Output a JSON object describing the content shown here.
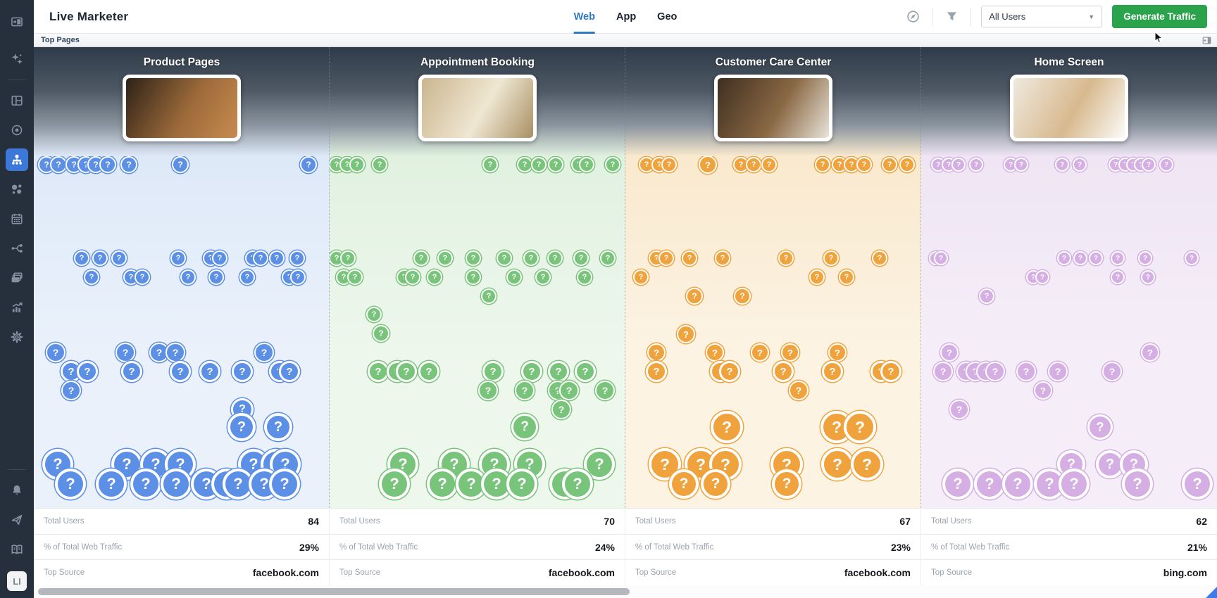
{
  "app": {
    "title": "Live Marketer"
  },
  "header": {
    "tabs": [
      {
        "label": "Web",
        "active": true
      },
      {
        "label": "App",
        "active": false
      },
      {
        "label": "Geo",
        "active": false
      }
    ],
    "icons": [
      "compass-icon",
      "filter-icon"
    ],
    "user_filter": {
      "value": "All Users",
      "caret": "▼"
    },
    "generate_button_label": "Generate Traffic",
    "accent_green": "#2BA24C",
    "tab_active_color": "#2F7AC0"
  },
  "subheader": {
    "title": "Top Pages",
    "panel_icon": "panel-collapse-icon"
  },
  "sidebar": {
    "items": [
      {
        "icon": "panel-toggle-icon"
      },
      {
        "icon": "sparkles-icon"
      },
      {
        "type": "divider"
      },
      {
        "icon": "dashboard-icon"
      },
      {
        "icon": "target-icon"
      },
      {
        "icon": "sitemap-icon",
        "active": true
      },
      {
        "icon": "bubbles-icon"
      },
      {
        "icon": "calendar-icon"
      },
      {
        "icon": "branch-icon"
      },
      {
        "icon": "stack-icon"
      },
      {
        "icon": "chart-icon"
      },
      {
        "icon": "gear-icon"
      },
      {
        "type": "spacer"
      },
      {
        "type": "divider"
      },
      {
        "icon": "bell-icon"
      },
      {
        "icon": "send-icon"
      },
      {
        "icon": "book-icon"
      }
    ],
    "badge": "LI",
    "active_color": "#3B78D8"
  },
  "stats_labels": {
    "users": "Total Users",
    "traffic": "% of Total Web Traffic",
    "source": "Top Source"
  },
  "columns": [
    {
      "title": "Product Pages",
      "accent": "#5C8FE6",
      "bg1": "#DEE9F8",
      "bg2": "#EAF1FB",
      "photo": [
        "#2E2217",
        "#9C6A3A",
        "#C88B4F"
      ],
      "stats": {
        "total_users": "84",
        "traffic_pct": "29%",
        "top_source": "facebook.com"
      },
      "bubbles": [
        [
          18,
          12,
          12
        ],
        [
          35,
          12,
          12
        ],
        [
          57,
          12,
          12
        ],
        [
          74,
          12,
          12
        ],
        [
          88,
          12,
          12
        ],
        [
          105,
          12,
          12
        ],
        [
          135,
          12,
          12
        ],
        [
          208,
          12,
          12
        ],
        [
          390,
          12,
          12
        ],
        [
          68,
          145,
          11
        ],
        [
          94,
          145,
          11
        ],
        [
          121,
          145,
          11
        ],
        [
          205,
          145,
          11
        ],
        [
          251,
          145,
          11
        ],
        [
          264,
          145,
          11
        ],
        [
          311,
          145,
          11
        ],
        [
          322,
          145,
          11
        ],
        [
          345,
          145,
          11
        ],
        [
          374,
          145,
          11
        ],
        [
          82,
          172,
          11
        ],
        [
          138,
          172,
          11
        ],
        [
          154,
          172,
          11
        ],
        [
          219,
          172,
          11
        ],
        [
          259,
          172,
          11
        ],
        [
          303,
          172,
          11
        ],
        [
          363,
          172,
          11
        ],
        [
          375,
          172,
          11
        ],
        [
          31,
          279,
          14
        ],
        [
          130,
          279,
          14
        ],
        [
          178,
          279,
          14
        ],
        [
          201,
          279,
          14
        ],
        [
          327,
          279,
          14
        ],
        [
          53,
          306,
          15
        ],
        [
          76,
          306,
          15
        ],
        [
          139,
          306,
          15
        ],
        [
          208,
          306,
          15
        ],
        [
          250,
          306,
          15
        ],
        [
          296,
          306,
          15
        ],
        [
          349,
          306,
          15
        ],
        [
          363,
          306,
          15
        ],
        [
          53,
          333,
          14
        ],
        [
          296,
          360,
          16
        ],
        [
          295,
          385,
          20
        ],
        [
          347,
          385,
          20
        ],
        [
          34,
          438,
          22
        ],
        [
          132,
          438,
          22
        ],
        [
          173,
          438,
          22
        ],
        [
          208,
          438,
          22
        ],
        [
          312,
          438,
          22
        ],
        [
          344,
          438,
          22
        ],
        [
          357,
          438,
          22
        ],
        [
          52,
          466,
          22
        ],
        [
          110,
          466,
          22
        ],
        [
          159,
          466,
          22
        ],
        [
          202,
          466,
          22
        ],
        [
          245,
          466,
          22
        ],
        [
          274,
          466,
          22
        ],
        [
          290,
          466,
          22
        ],
        [
          327,
          466,
          22
        ],
        [
          356,
          466,
          22
        ]
      ]
    },
    {
      "title": "Appointment Booking",
      "accent": "#79C47B",
      "bg1": "#E1F1E0",
      "bg2": "#EDF7EC",
      "photo": [
        "#CBB58E",
        "#EFE7D2",
        "#A98F63"
      ],
      "stats": {
        "total_users": "70",
        "traffic_pct": "24%",
        "top_source": "facebook.com"
      },
      "bubbles": [
        [
          10,
          12,
          11
        ],
        [
          25,
          12,
          11
        ],
        [
          39,
          12,
          11
        ],
        [
          71,
          12,
          11
        ],
        [
          228,
          12,
          11
        ],
        [
          277,
          12,
          11
        ],
        [
          297,
          12,
          11
        ],
        [
          321,
          12,
          11
        ],
        [
          354,
          12,
          11
        ],
        [
          365,
          12,
          11
        ],
        [
          402,
          12,
          11
        ],
        [
          10,
          145,
          11
        ],
        [
          26,
          145,
          11
        ],
        [
          130,
          145,
          11
        ],
        [
          164,
          145,
          11
        ],
        [
          204,
          145,
          11
        ],
        [
          248,
          145,
          11
        ],
        [
          286,
          145,
          11
        ],
        [
          320,
          145,
          11
        ],
        [
          357,
          145,
          11
        ],
        [
          395,
          145,
          11
        ],
        [
          20,
          172,
          11
        ],
        [
          36,
          172,
          11
        ],
        [
          106,
          172,
          11
        ],
        [
          118,
          172,
          11
        ],
        [
          149,
          172,
          11
        ],
        [
          204,
          172,
          11
        ],
        [
          262,
          172,
          11
        ],
        [
          303,
          172,
          11
        ],
        [
          362,
          172,
          11
        ],
        [
          226,
          199,
          11
        ],
        [
          63,
          225,
          11
        ],
        [
          73,
          252,
          12
        ],
        [
          69,
          306,
          15
        ],
        [
          96,
          306,
          15
        ],
        [
          109,
          306,
          15
        ],
        [
          141,
          306,
          15
        ],
        [
          232,
          306,
          15
        ],
        [
          287,
          306,
          15
        ],
        [
          325,
          306,
          15
        ],
        [
          363,
          306,
          15
        ],
        [
          225,
          333,
          14
        ],
        [
          277,
          333,
          14
        ],
        [
          324,
          333,
          14
        ],
        [
          340,
          333,
          14
        ],
        [
          391,
          333,
          14
        ],
        [
          329,
          360,
          14
        ],
        [
          277,
          385,
          19
        ],
        [
          104,
          438,
          22
        ],
        [
          177,
          438,
          22
        ],
        [
          234,
          438,
          22
        ],
        [
          284,
          438,
          22
        ],
        [
          383,
          438,
          22
        ],
        [
          92,
          466,
          22
        ],
        [
          160,
          466,
          22
        ],
        [
          201,
          466,
          22
        ],
        [
          237,
          466,
          22
        ],
        [
          273,
          466,
          22
        ],
        [
          334,
          466,
          22
        ],
        [
          352,
          466,
          22
        ]
      ]
    },
    {
      "title": "Customer Care Center",
      "accent": "#F0A33C",
      "bg1": "#F9E9CE",
      "bg2": "#FCF3E3",
      "photo": [
        "#3F2F20",
        "#8A6844",
        "#E9E4DA"
      ],
      "stats": {
        "total_users": "67",
        "traffic_pct": "23%",
        "top_source": "facebook.com"
      },
      "bubbles": [
        [
          30,
          12,
          11
        ],
        [
          48,
          12,
          11
        ],
        [
          62,
          12,
          11
        ],
        [
          117,
          12,
          13
        ],
        [
          164,
          12,
          11
        ],
        [
          182,
          12,
          11
        ],
        [
          204,
          12,
          11
        ],
        [
          280,
          12,
          11
        ],
        [
          304,
          12,
          11
        ],
        [
          321,
          12,
          11
        ],
        [
          339,
          12,
          11
        ],
        [
          375,
          12,
          11
        ],
        [
          400,
          12,
          11
        ],
        [
          44,
          145,
          11
        ],
        [
          58,
          145,
          11
        ],
        [
          91,
          145,
          11
        ],
        [
          138,
          145,
          11
        ],
        [
          228,
          145,
          11
        ],
        [
          292,
          145,
          11
        ],
        [
          361,
          145,
          11
        ],
        [
          22,
          172,
          11
        ],
        [
          272,
          172,
          11
        ],
        [
          314,
          172,
          11
        ],
        [
          98,
          199,
          12
        ],
        [
          166,
          199,
          12
        ],
        [
          86,
          253,
          13
        ],
        [
          44,
          279,
          13
        ],
        [
          127,
          279,
          13
        ],
        [
          191,
          279,
          13
        ],
        [
          234,
          279,
          13
        ],
        [
          301,
          279,
          13
        ],
        [
          44,
          306,
          15
        ],
        [
          135,
          306,
          15
        ],
        [
          148,
          306,
          15
        ],
        [
          224,
          306,
          15
        ],
        [
          294,
          306,
          15
        ],
        [
          363,
          306,
          15
        ],
        [
          377,
          306,
          15
        ],
        [
          246,
          333,
          14
        ],
        [
          144,
          385,
          23
        ],
        [
          300,
          385,
          23
        ],
        [
          333,
          385,
          23
        ],
        [
          56,
          438,
          23
        ],
        [
          107,
          438,
          23
        ],
        [
          142,
          438,
          23
        ],
        [
          229,
          438,
          23
        ],
        [
          301,
          438,
          23
        ],
        [
          343,
          438,
          23
        ],
        [
          83,
          466,
          21
        ],
        [
          128,
          466,
          21
        ],
        [
          229,
          466,
          21
        ]
      ]
    },
    {
      "title": "Home Screen",
      "accent": "#D5AEE4",
      "bg1": "#EFE5F4",
      "bg2": "#F5EEF8",
      "photo": [
        "#EFE9DF",
        "#D8B98E",
        "#FCFBF8"
      ],
      "stats": {
        "total_users": "62",
        "traffic_pct": "21%",
        "top_source": "bing.com"
      },
      "bubbles": [
        [
          24,
          12,
          10
        ],
        [
          39,
          12,
          10
        ],
        [
          53,
          12,
          10
        ],
        [
          78,
          12,
          10
        ],
        [
          127,
          12,
          10
        ],
        [
          142,
          12,
          10
        ],
        [
          200,
          12,
          10
        ],
        [
          225,
          12,
          10
        ],
        [
          276,
          12,
          10
        ],
        [
          290,
          12,
          10
        ],
        [
          301,
          12,
          10
        ],
        [
          312,
          12,
          10
        ],
        [
          323,
          12,
          10
        ],
        [
          348,
          12,
          10
        ],
        [
          21,
          145,
          10
        ],
        [
          28,
          145,
          10
        ],
        [
          203,
          145,
          10
        ],
        [
          226,
          145,
          10
        ],
        [
          248,
          145,
          10
        ],
        [
          279,
          145,
          10
        ],
        [
          318,
          145,
          10
        ],
        [
          384,
          145,
          10
        ],
        [
          159,
          172,
          10
        ],
        [
          172,
          172,
          10
        ],
        [
          279,
          172,
          10
        ],
        [
          322,
          172,
          10
        ],
        [
          93,
          199,
          11
        ],
        [
          40,
          279,
          13
        ],
        [
          325,
          279,
          13
        ],
        [
          31,
          306,
          14
        ],
        [
          64,
          306,
          14
        ],
        [
          77,
          306,
          14
        ],
        [
          92,
          306,
          14
        ],
        [
          105,
          306,
          14
        ],
        [
          149,
          306,
          14
        ],
        [
          194,
          306,
          14
        ],
        [
          271,
          306,
          14
        ],
        [
          173,
          333,
          13
        ],
        [
          54,
          360,
          14
        ],
        [
          254,
          385,
          18
        ],
        [
          213,
          438,
          20
        ],
        [
          268,
          438,
          20
        ],
        [
          302,
          438,
          20
        ],
        [
          52,
          466,
          22
        ],
        [
          97,
          466,
          22
        ],
        [
          137,
          466,
          22
        ],
        [
          182,
          466,
          22
        ],
        [
          217,
          466,
          22
        ],
        [
          307,
          466,
          22
        ],
        [
          392,
          466,
          22
        ]
      ]
    }
  ]
}
